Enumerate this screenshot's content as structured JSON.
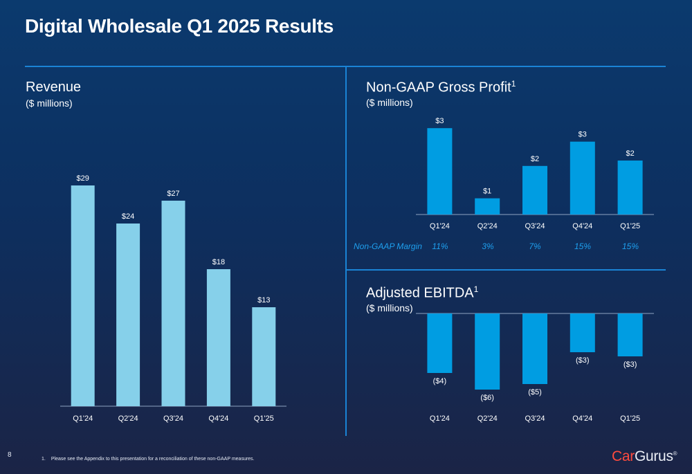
{
  "page": {
    "title": "Digital Wholesale Q1 2025 Results",
    "page_number": "8",
    "footnote_number": "1.",
    "footnote_text": "Please see the Appendix to this presentation for a reconciliation of these non-GAAP measures.",
    "logo": {
      "part1": "Car",
      "part2": "Gurus",
      "mark": "®"
    }
  },
  "panels": {
    "revenue": {
      "title": "Revenue",
      "subtitle": "($ millions)"
    },
    "gross_profit": {
      "title": "Non-GAAP Gross Profit",
      "superscript": "1",
      "subtitle": "($ millions)"
    },
    "ebitda": {
      "title": "Adjusted EBITDA",
      "superscript": "1",
      "subtitle": "($ millions)"
    }
  },
  "margin_row": {
    "label": "Non-GAAP Margin",
    "values": [
      "11%",
      "3%",
      "7%",
      "15%",
      "15%"
    ]
  },
  "colors": {
    "revenue_bar": "#86d0ea",
    "profit_bar": "#009de2",
    "accent_line": "#1a84d6",
    "logo_red": "#ff4b3e"
  },
  "chart_data": [
    {
      "id": "revenue",
      "type": "bar",
      "categories": [
        "Q1'24",
        "Q2'24",
        "Q3'24",
        "Q4'24",
        "Q1'25"
      ],
      "values": [
        29,
        24,
        27,
        18,
        13
      ],
      "labels": [
        "$29",
        "$24",
        "$27",
        "$18",
        "$13"
      ],
      "ylim": [
        0,
        30
      ]
    },
    {
      "id": "gross_profit",
      "type": "bar",
      "categories": [
        "Q1'24",
        "Q2'24",
        "Q3'24",
        "Q4'24",
        "Q1'25"
      ],
      "values": [
        3.2,
        0.6,
        1.8,
        2.7,
        2.0
      ],
      "labels": [
        "$3",
        "$1",
        "$2",
        "$3",
        "$2"
      ],
      "ylim": [
        0,
        3.3
      ]
    },
    {
      "id": "ebitda",
      "type": "bar",
      "categories": [
        "Q1'24",
        "Q2'24",
        "Q3'24",
        "Q4'24",
        "Q1'25"
      ],
      "values": [
        -4.3,
        -5.5,
        -5.1,
        -2.8,
        -3.1
      ],
      "labels": [
        "($4)",
        "($6)",
        "($5)",
        "($3)",
        "($3)"
      ],
      "ylim": [
        -6,
        0
      ]
    }
  ]
}
